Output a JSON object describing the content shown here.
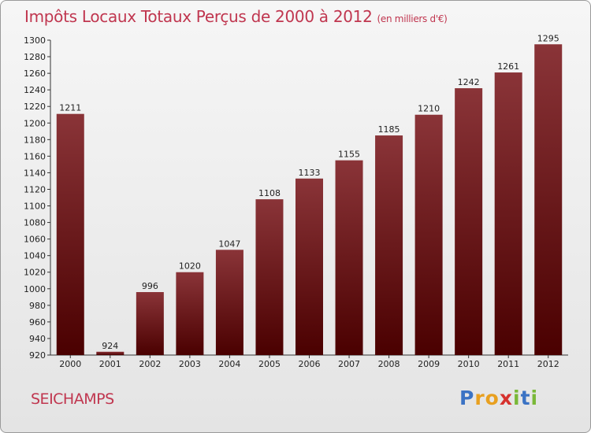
{
  "chart_data": {
    "type": "bar",
    "title": "Impôts Locaux Totaux Perçus de 2000 à 2012",
    "subtitle": "(en milliers d'€)",
    "categories": [
      "2000",
      "2001",
      "2002",
      "2003",
      "2004",
      "2005",
      "2006",
      "2007",
      "2008",
      "2009",
      "2010",
      "2011",
      "2012"
    ],
    "values": [
      1211,
      924,
      996,
      1020,
      1047,
      1108,
      1133,
      1155,
      1185,
      1210,
      1242,
      1261,
      1295
    ],
    "ylim": [
      920,
      1300
    ],
    "yticks": [
      920,
      940,
      960,
      980,
      1000,
      1020,
      1040,
      1060,
      1080,
      1100,
      1120,
      1140,
      1160,
      1180,
      1200,
      1220,
      1240,
      1260,
      1280,
      1300
    ],
    "xlabel": "",
    "ylabel": "",
    "grid": false
  },
  "commune": "SEICHAMPS",
  "logo": {
    "letters": [
      "P",
      "r",
      "o",
      "x",
      "i",
      "t",
      "i"
    ],
    "colors": [
      "#3b73c4",
      "#e8a020",
      "#e8a020",
      "#d6322e",
      "#7ab838",
      "#3b73c4",
      "#7ab838"
    ]
  },
  "colors": {
    "bar_top": "#8a3438",
    "bar_bottom": "#4a0000",
    "title": "#c0364f"
  }
}
